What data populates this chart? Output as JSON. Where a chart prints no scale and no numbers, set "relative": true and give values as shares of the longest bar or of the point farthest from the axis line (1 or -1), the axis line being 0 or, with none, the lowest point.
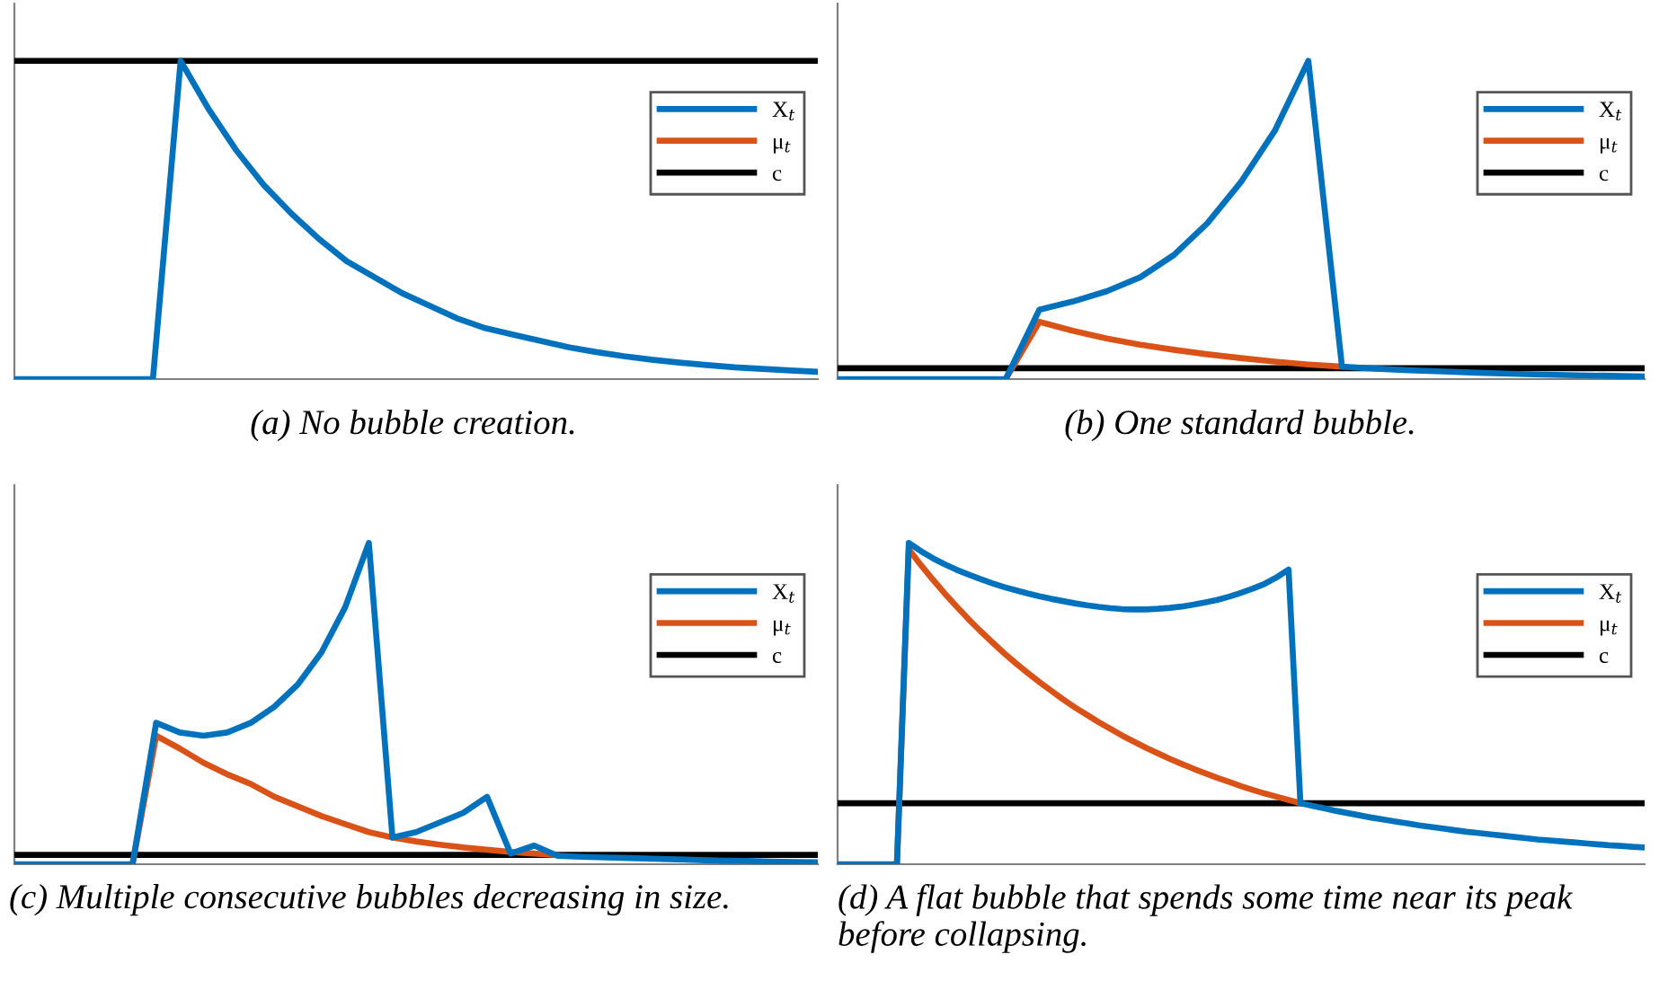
{
  "chart_data": [
    {
      "type": "line",
      "relative": true,
      "legend": "top right",
      "annotations": [
        "(a) No bubble creation."
      ],
      "categories": [
        null,
        null,
        null,
        null,
        null,
        null,
        null,
        null,
        null,
        null,
        null,
        null,
        null,
        null,
        null,
        null,
        null,
        null,
        null,
        null,
        null,
        null,
        null,
        null,
        null,
        null,
        null,
        null,
        null,
        null
      ],
      "series": [
        {
          "name": "X$_{t}$",
          "color": "#0072bd",
          "values": [
            0,
            0,
            0,
            0,
            0,
            0,
            1,
            0.85,
            0.72,
            0.61,
            0.52,
            0.44,
            0.37,
            0.32,
            0.27,
            0.23,
            0.19,
            0.16,
            0.14,
            0.12,
            0.1,
            0.085,
            0.072,
            0.061,
            0.052,
            0.044,
            0.037,
            0.032,
            0.027,
            0.023
          ]
        },
        {
          "name": "μ$_{t}$",
          "color": "#d95319",
          "values": [
            null,
            null,
            null,
            null,
            null,
            null,
            null,
            null,
            null,
            null,
            null,
            null,
            null,
            null,
            null,
            null,
            null,
            null,
            null,
            null,
            null,
            null,
            null,
            null,
            null,
            null,
            null,
            null,
            null,
            null
          ]
        },
        {
          "name": "c",
          "color": "#000000",
          "values": [
            1,
            1,
            1,
            1,
            1,
            1,
            1,
            1,
            1,
            1,
            1,
            1,
            1,
            1,
            1,
            1,
            1,
            1,
            1,
            1,
            1,
            1,
            1,
            1,
            1,
            1,
            1,
            1,
            1,
            1
          ]
        }
      ]
    },
    {
      "type": "line",
      "relative": true,
      "legend": "top right",
      "annotations": [
        "(b) One standard bubble."
      ],
      "categories": [
        null,
        null,
        null,
        null,
        null,
        null,
        null,
        null,
        null,
        null,
        null,
        null,
        null,
        null,
        null,
        null,
        null,
        null,
        null,
        null,
        null,
        null,
        null,
        null,
        null
      ],
      "series": [
        {
          "name": "X$_{t}$",
          "color": "#0072bd",
          "values": [
            0,
            0,
            0,
            0,
            0,
            0,
            0.218,
            0.244,
            0.276,
            0.32,
            0.39,
            0.49,
            0.62,
            0.78,
            1,
            0.039,
            0.033,
            0.028,
            0.024,
            0.02,
            0.017,
            0.014,
            0.012,
            0.01,
            0.008
          ]
        },
        {
          "name": "μ$_{t}$",
          "color": "#d95319",
          "values": [
            null,
            null,
            null,
            null,
            null,
            0,
            0.18,
            0.152,
            0.128,
            0.108,
            0.092,
            0.078,
            0.066,
            0.055,
            0.046,
            0.039,
            null,
            null,
            null,
            null,
            null,
            null,
            null,
            null,
            null
          ]
        },
        {
          "name": "c",
          "color": "#000000",
          "values": [
            0.034,
            0.034,
            0.034,
            0.034,
            0.034,
            0.034,
            0.034,
            0.034,
            0.034,
            0.034,
            0.034,
            0.034,
            0.034,
            0.034,
            0.034,
            0.034,
            0.034,
            0.034,
            0.034,
            0.034,
            0.034,
            0.034,
            0.034,
            0.034,
            0.034
          ]
        }
      ]
    },
    {
      "type": "line",
      "relative": true,
      "legend": "top right",
      "annotations": [
        "(c) Multiple consecutive bubbles decreasing in size."
      ],
      "categories": [
        null,
        null,
        null,
        null,
        null,
        null,
        null,
        null,
        null,
        null,
        null,
        null,
        null,
        null,
        null,
        null,
        null,
        null,
        null,
        null,
        null,
        null,
        null,
        null,
        null,
        null,
        null,
        null,
        null,
        null,
        null,
        null,
        null,
        null,
        null
      ],
      "series": [
        {
          "name": "X$_{t}$",
          "color": "#0072bd",
          "values": [
            0,
            0,
            0,
            0,
            0,
            0,
            0.44,
            0.41,
            0.4,
            0.41,
            0.44,
            0.49,
            0.56,
            0.66,
            0.8,
            1,
            0.083,
            0.1,
            0.13,
            0.16,
            0.21,
            0.033,
            0.058,
            0.026,
            0.023,
            0.021,
            0.019,
            0.017,
            0.015,
            0.013,
            0.011,
            0.01,
            0.008,
            0.007,
            0.006
          ]
        },
        {
          "name": "μ$_{t}$",
          "color": "#d95319",
          "values": [
            null,
            null,
            null,
            null,
            null,
            0,
            0.4,
            0.36,
            0.316,
            0.28,
            0.25,
            0.21,
            0.18,
            0.15,
            0.125,
            0.1,
            0.083,
            0.071,
            0.061,
            0.052,
            0.045,
            0.038,
            0.033,
            0.028,
            null,
            null,
            null,
            null,
            null,
            null,
            null,
            null,
            null,
            null,
            null
          ]
        },
        {
          "name": "c",
          "color": "#000000",
          "values": [
            0.029,
            0.029,
            0.029,
            0.029,
            0.029,
            0.029,
            0.029,
            0.029,
            0.029,
            0.029,
            0.029,
            0.029,
            0.029,
            0.029,
            0.029,
            0.029,
            0.029,
            0.029,
            0.029,
            0.029,
            0.029,
            0.029,
            0.029,
            0.029,
            0.029,
            0.029,
            0.029,
            0.029,
            0.029,
            0.029,
            0.029,
            0.029,
            0.029,
            0.029,
            0.029
          ]
        }
      ]
    },
    {
      "type": "line",
      "relative": true,
      "legend": "top right",
      "annotations": [
        "(d) A flat bubble that spends some time near its peak before collapsing."
      ],
      "categories": [
        null,
        null,
        null,
        null,
        null,
        null,
        null,
        null,
        null,
        null,
        null,
        null,
        null,
        null,
        null,
        null,
        null,
        null,
        null,
        null,
        null,
        null,
        null,
        null,
        null,
        null,
        null,
        null,
        null,
        null,
        null,
        null,
        null,
        null,
        null,
        null,
        null,
        null,
        null,
        null,
        null,
        null,
        null,
        null,
        null,
        null,
        null,
        null,
        null,
        null,
        null,
        null,
        null,
        null,
        null,
        null,
        null,
        null,
        null,
        null,
        null,
        null,
        null,
        null,
        null,
        null,
        null,
        null,
        null
      ],
      "series": [
        {
          "name": "X$_{t}$",
          "color": "#0072bd",
          "values": [
            0,
            0,
            0,
            0,
            0,
            0,
            1,
            0.975,
            0.953,
            0.934,
            0.917,
            0.902,
            0.888,
            0.875,
            0.863,
            0.853,
            0.843,
            0.834,
            0.826,
            0.819,
            0.812,
            0.806,
            0.801,
            0.797,
            0.794,
            0.793,
            0.793,
            0.795,
            0.798,
            0.802,
            0.808,
            0.815,
            0.823,
            0.833,
            0.845,
            0.858,
            0.873,
            0.893,
            0.917,
            0.19,
            0.182,
            0.174,
            0.166,
            0.159,
            0.152,
            0.145,
            0.139,
            0.133,
            0.127,
            0.121,
            0.116,
            0.111,
            0.106,
            0.101,
            0.097,
            0.093,
            0.089,
            0.085,
            0.081,
            0.077,
            0.074,
            0.071,
            0.068,
            0.065,
            0.062,
            0.059,
            0.057,
            0.054,
            0.052
          ]
        },
        {
          "name": "μ$_{t}$",
          "color": "#d95319",
          "values": [
            null,
            null,
            null,
            null,
            null,
            0,
            0.98,
            0.932,
            0.887,
            0.844,
            0.803,
            0.764,
            0.727,
            0.692,
            0.658,
            0.626,
            0.596,
            0.567,
            0.54,
            0.513,
            0.488,
            0.465,
            0.442,
            0.421,
            0.4,
            0.381,
            0.362,
            0.345,
            0.328,
            0.312,
            0.297,
            0.283,
            0.269,
            0.256,
            0.243,
            0.231,
            0.22,
            0.21,
            0.2,
            0.19,
            null,
            null,
            null,
            null,
            null,
            null,
            null,
            null,
            null,
            null,
            null,
            null,
            null,
            null,
            null,
            null,
            null,
            null,
            null,
            null,
            null,
            null,
            null,
            null,
            null,
            null,
            null,
            null,
            null
          ]
        },
        {
          "name": "c",
          "color": "#000000",
          "values": [
            0.19,
            0.19,
            0.19,
            0.19,
            0.19,
            0.19,
            0.19,
            0.19,
            0.19,
            0.19,
            0.19,
            0.19,
            0.19,
            0.19,
            0.19,
            0.19,
            0.19,
            0.19,
            0.19,
            0.19,
            0.19,
            0.19,
            0.19,
            0.19,
            0.19,
            0.19,
            0.19,
            0.19,
            0.19,
            0.19,
            0.19,
            0.19,
            0.19,
            0.19,
            0.19,
            0.19,
            0.19,
            0.19,
            0.19,
            0.19,
            0.19,
            0.19,
            0.19,
            0.19,
            0.19,
            0.19,
            0.19,
            0.19,
            0.19,
            0.19,
            0.19,
            0.19,
            0.19,
            0.19,
            0.19,
            0.19,
            0.19,
            0.19,
            0.19,
            0.19,
            0.19,
            0.19,
            0.19,
            0.19,
            0.19,
            0.19,
            0.19,
            0.19,
            0.19
          ]
        }
      ]
    }
  ]
}
